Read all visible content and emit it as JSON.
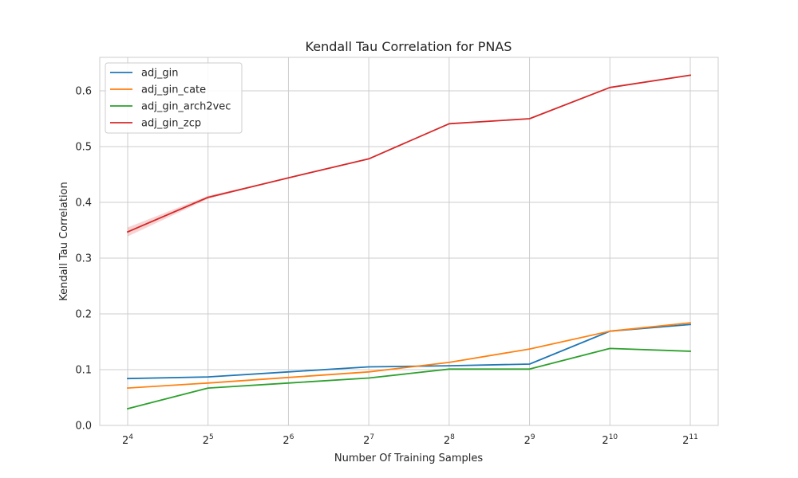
{
  "chart_data": {
    "type": "line",
    "title": "Kendall Tau Correlation for PNAS",
    "xlabel": "Number Of Training Samples",
    "ylabel": "Kendall Tau Correlation",
    "x_scale": "log2",
    "x": [
      16,
      32,
      64,
      128,
      256,
      512,
      1024,
      2048
    ],
    "x_tick_labels": [
      {
        "base": "2",
        "exp": "4"
      },
      {
        "base": "2",
        "exp": "5"
      },
      {
        "base": "2",
        "exp": "6"
      },
      {
        "base": "2",
        "exp": "7"
      },
      {
        "base": "2",
        "exp": "8"
      },
      {
        "base": "2",
        "exp": "9"
      },
      {
        "base": "2",
        "exp": "10"
      },
      {
        "base": "2",
        "exp": "11"
      }
    ],
    "ylim": [
      0,
      0.66
    ],
    "y_ticks": [
      "0.0",
      "0.1",
      "0.2",
      "0.3",
      "0.4",
      "0.5",
      "0.6"
    ],
    "grid": true,
    "legend_position": "top-left",
    "series": [
      {
        "name": "adj_gin",
        "color": "#1f77b4",
        "values": [
          0.084,
          0.087,
          0.096,
          0.105,
          0.107,
          0.11,
          0.169,
          0.181
        ]
      },
      {
        "name": "adj_gin_cate",
        "color": "#ff7f0e",
        "values": [
          0.067,
          0.076,
          0.086,
          0.096,
          0.113,
          0.137,
          0.169,
          0.184
        ]
      },
      {
        "name": "adj_gin_arch2vec",
        "color": "#2ca02c",
        "values": [
          0.03,
          0.067,
          0.076,
          0.085,
          0.101,
          0.101,
          0.138,
          0.133
        ]
      },
      {
        "name": "adj_gin_zcp",
        "color": "#d62728",
        "values": [
          0.347,
          0.409,
          0.444,
          0.478,
          0.541,
          0.55,
          0.606,
          0.628
        ],
        "band": 0.008
      }
    ]
  }
}
